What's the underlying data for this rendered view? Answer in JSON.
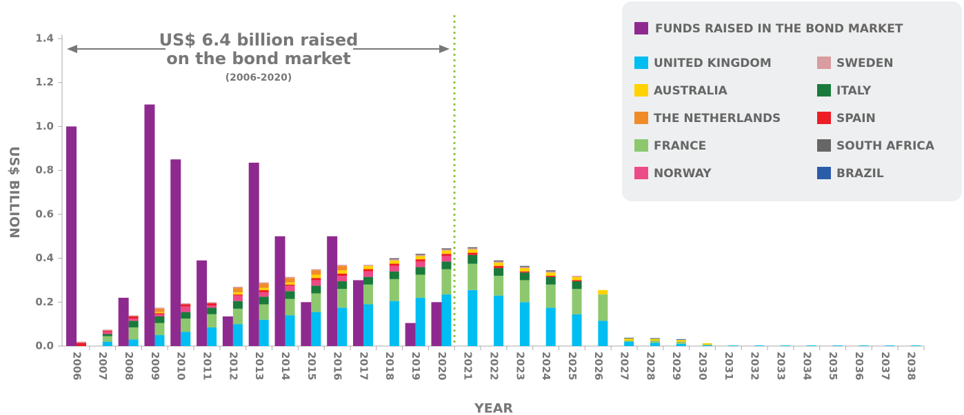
{
  "chart_data": {
    "type": "bar",
    "annotations": [
      "US$ 6.4 billion raised",
      "on the bond market",
      "(2006-2020)"
    ],
    "y_axis_label": "US$ BILLION",
    "x_axis_label": "YEAR",
    "categories": [
      "2006",
      "2007",
      "2008",
      "2009",
      "2010",
      "2011",
      "2012",
      "2013",
      "2014",
      "2015",
      "2016",
      "2017",
      "2018",
      "2019",
      "2020",
      "2021",
      "2022",
      "2023",
      "2024",
      "2025",
      "2026",
      "2027",
      "2028",
      "2029",
      "2030",
      "2031",
      "2032",
      "2033",
      "2034",
      "2035",
      "2036",
      "2037",
      "2038"
    ],
    "ylim": [
      0,
      1.4
    ],
    "yticks": [
      {
        "value": 0,
        "label": "0.0"
      },
      {
        "value": 0.2,
        "label": "0.2"
      },
      {
        "value": 0.4,
        "label": "0.4"
      },
      {
        "value": 0.6,
        "label": "0.6"
      },
      {
        "value": 0.8,
        "label": "0.8"
      },
      {
        "value": 1,
        "label": "1.0"
      },
      {
        "value": 1.2,
        "label": "1.2"
      },
      {
        "value": 1.4,
        "label": "1.4"
      }
    ],
    "funds": {
      "name": "FUNDS RAISED IN THE BOND MARKET",
      "color": "#8e2a8f",
      "values": [
        1.0,
        null,
        0.22,
        1.1,
        0.85,
        0.39,
        0.135,
        0.835,
        0.5,
        0.2,
        0.5,
        0.3,
        null,
        0.105,
        0.2,
        null,
        null,
        null,
        null,
        null,
        null,
        null,
        null,
        null,
        null,
        null,
        null,
        null,
        null,
        null,
        null,
        null,
        null
      ]
    },
    "series": [
      {
        "name": "UNITED KINGDOM",
        "color": "#00bdf2",
        "values": [
          0,
          0.02,
          0.03,
          0.05,
          0.065,
          0.085,
          0.1,
          0.12,
          0.14,
          0.155,
          0.175,
          0.19,
          0.205,
          0.22,
          0.235,
          0.255,
          0.23,
          0.2,
          0.175,
          0.145,
          0.115,
          0.02,
          0.015,
          0.01,
          0.005,
          0.003,
          0.003,
          0.003,
          0.003,
          0.003,
          0.003,
          0.003,
          0.003
        ]
      },
      {
        "name": "AUSTRALIA",
        "color": "#ffd200",
        "values": [
          0,
          0,
          0,
          0.005,
          0,
          0,
          0.01,
          0.01,
          0.01,
          0.015,
          0.015,
          0.015,
          0.015,
          0.015,
          0.015,
          0.015,
          0.015,
          0.015,
          0.015,
          0.015,
          0.02,
          0.01,
          0.008,
          0.008,
          0.008,
          0,
          0,
          0,
          0,
          0,
          0,
          0,
          0
        ]
      },
      {
        "name": "THE NETHERLANDS",
        "color": "#f08c28",
        "values": [
          0,
          0,
          0,
          0.015,
          0,
          0,
          0.02,
          0.02,
          0.02,
          0.02,
          0.02,
          0,
          0,
          0,
          0,
          0,
          0,
          0,
          0,
          0,
          0,
          0,
          0,
          0,
          0,
          0,
          0,
          0,
          0,
          0,
          0,
          0,
          0
        ]
      },
      {
        "name": "FRANCE",
        "color": "#8dc86e",
        "values": [
          0,
          0.025,
          0.055,
          0.055,
          0.06,
          0.06,
          0.07,
          0.07,
          0.075,
          0.085,
          0.085,
          0.09,
          0.1,
          0.105,
          0.115,
          0.12,
          0.09,
          0.1,
          0.105,
          0.115,
          0.12,
          0.005,
          0.01,
          0.01,
          0,
          0,
          0,
          0,
          0,
          0,
          0,
          0,
          0
        ]
      },
      {
        "name": "NORWAY",
        "color": "#ec4b87",
        "values": [
          0,
          0.01,
          0.01,
          0.01,
          0.025,
          0.01,
          0.025,
          0.02,
          0.025,
          0.025,
          0.025,
          0.025,
          0.025,
          0.025,
          0.025,
          0,
          0,
          0,
          0,
          0,
          0,
          0,
          0,
          0,
          0,
          0,
          0,
          0,
          0,
          0,
          0,
          0,
          0
        ]
      },
      {
        "name": "SWEDEN",
        "color": "#d99ca0",
        "values": [
          0.005,
          0.005,
          0.005,
          0.005,
          0.005,
          0.005,
          0.005,
          0.005,
          0.005,
          0.005,
          0.005,
          0.005,
          0.005,
          0.005,
          0.005,
          0.005,
          0.005,
          0.005,
          0.005,
          0.005,
          0,
          0,
          0,
          0,
          0,
          0,
          0,
          0,
          0,
          0,
          0,
          0,
          0
        ]
      },
      {
        "name": "ITALY",
        "color": "#1a7a3c",
        "values": [
          0,
          0.01,
          0.03,
          0.03,
          0.03,
          0.03,
          0.035,
          0.035,
          0.035,
          0.035,
          0.035,
          0.035,
          0.035,
          0.035,
          0.035,
          0.04,
          0.035,
          0.035,
          0.035,
          0.035,
          0,
          0,
          0,
          0,
          0,
          0,
          0,
          0,
          0,
          0,
          0,
          0,
          0
        ]
      },
      {
        "name": "SPAIN",
        "color": "#ee1c24",
        "values": [
          0.015,
          0.005,
          0.01,
          0.005,
          0.01,
          0.01,
          0.005,
          0.01,
          0.005,
          0.01,
          0.01,
          0.01,
          0.01,
          0.01,
          0.01,
          0.01,
          0.01,
          0.005,
          0.005,
          0.005,
          0,
          0,
          0,
          0,
          0,
          0,
          0,
          0,
          0,
          0,
          0,
          0,
          0
        ]
      },
      {
        "name": "SOUTH AFRICA",
        "color": "#666666",
        "values": [
          0,
          0,
          0,
          0,
          0,
          0,
          0,
          0,
          0,
          0,
          0,
          0,
          0.005,
          0.005,
          0.005,
          0.005,
          0.005,
          0.005,
          0.005,
          0,
          0,
          0,
          0,
          0,
          0,
          0,
          0,
          0,
          0,
          0,
          0,
          0,
          0
        ]
      },
      {
        "name": "BRAZIL",
        "color": "#2a5caa",
        "values": [
          0,
          0,
          0,
          0,
          0,
          0,
          0,
          0,
          0,
          0,
          0,
          0,
          0,
          0,
          0,
          0,
          0,
          0,
          0,
          0,
          0,
          0.003,
          0.003,
          0.003,
          0,
          0,
          0,
          0,
          0,
          0,
          0,
          0,
          0
        ]
      }
    ]
  }
}
